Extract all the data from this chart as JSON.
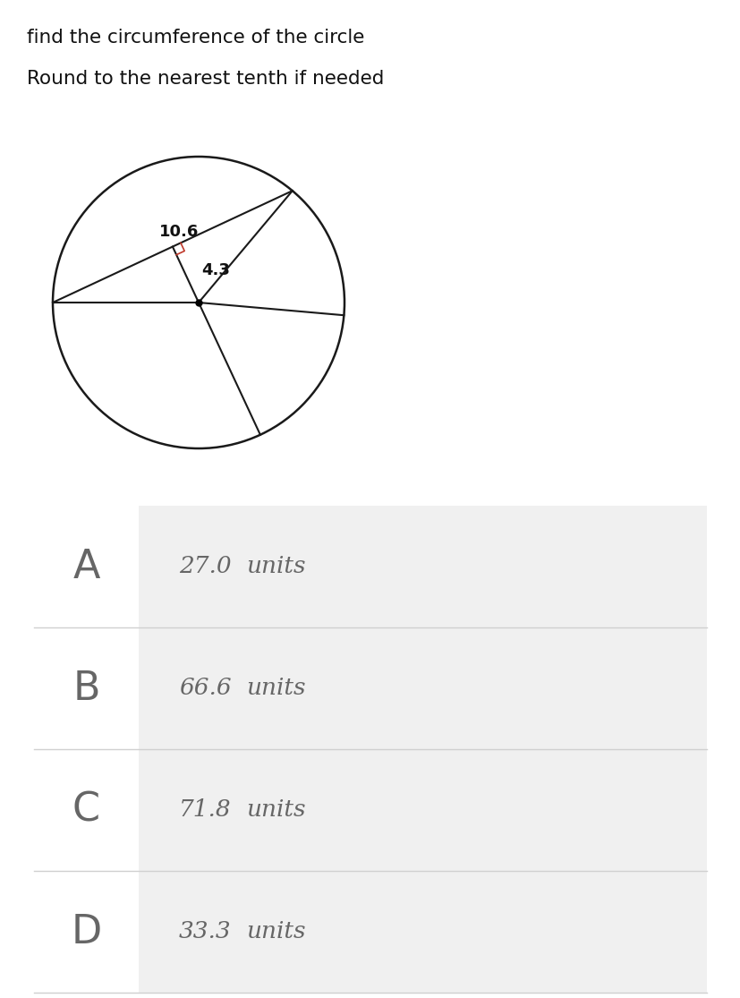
{
  "title_line1": "find the circumference of the circle",
  "title_line2": "Round to the nearest tenth if needed",
  "chord_label": "10.6",
  "radius_label": "4.3",
  "options": [
    {
      "letter": "A",
      "value": "27.0",
      "unit": "units"
    },
    {
      "letter": "B",
      "value": "66.6",
      "unit": "units"
    },
    {
      "letter": "C",
      "value": "71.8",
      "unit": "units"
    },
    {
      "letter": "D",
      "value": "33.3",
      "unit": "units"
    }
  ],
  "bg_color": "#ffffff",
  "table_bg_answer": "#f0f0f0",
  "table_bg_letter": "#ffffff",
  "separator_color": "#d0d0d0",
  "text_color": "#111111",
  "letter_color": "#666666",
  "line_color": "#1a1a1a",
  "right_angle_color": "#c0392b"
}
